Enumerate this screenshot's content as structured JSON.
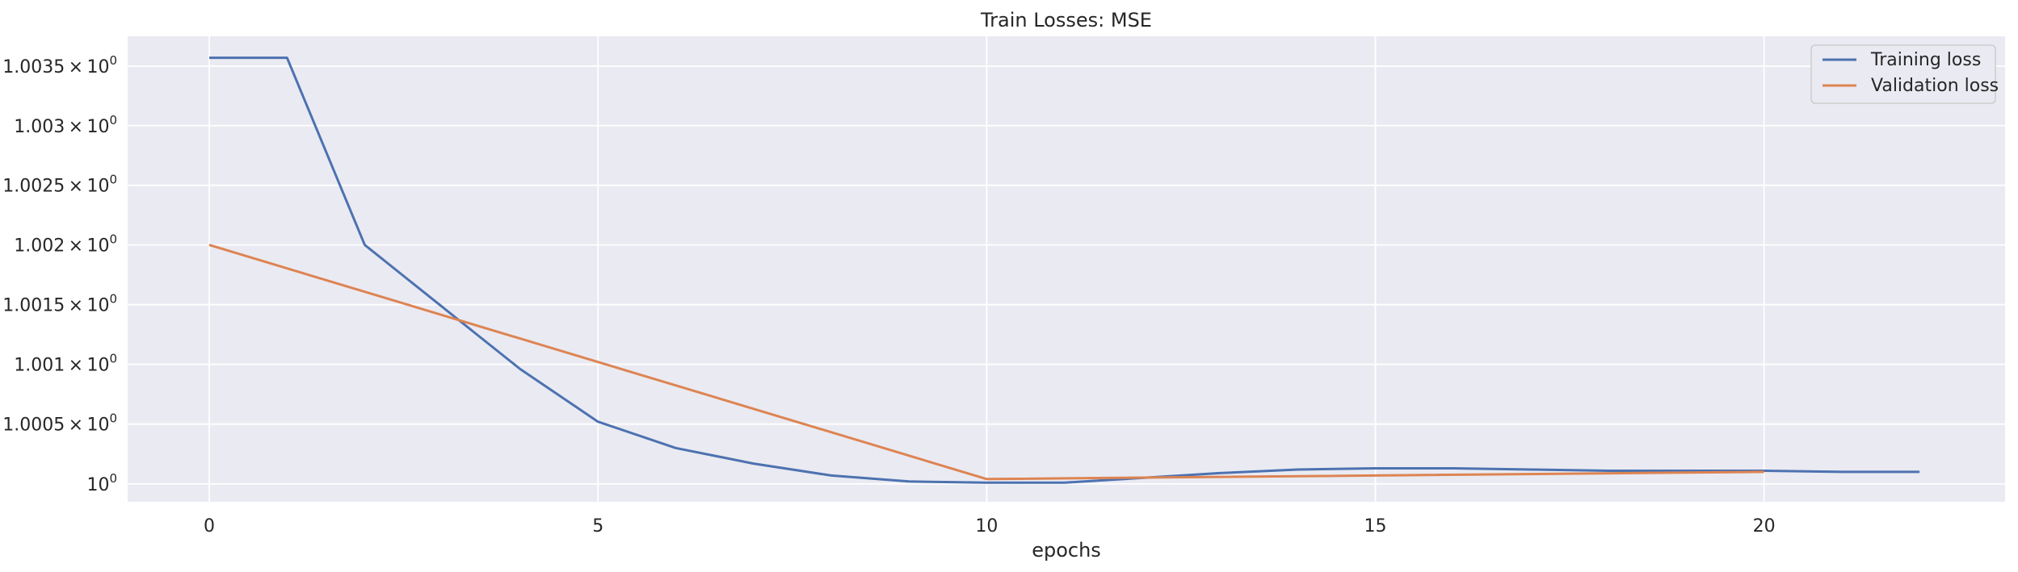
{
  "chart_data": {
    "type": "line",
    "title": "Train Losses:  MSE",
    "xlabel": "epochs",
    "ylabel": "",
    "y_scale": "log",
    "xlim": [
      -1.05,
      23.1
    ],
    "ylim": [
      0.99985,
      1.00375
    ],
    "grid": true,
    "legend_position": "top-right",
    "background_color": "#eaeaf2",
    "grid_color": "#ffffff",
    "x_ticks": [
      {
        "value": 0,
        "label": "0"
      },
      {
        "value": 5,
        "label": "5"
      },
      {
        "value": 10,
        "label": "10"
      },
      {
        "value": 15,
        "label": "15"
      },
      {
        "value": 20,
        "label": "20"
      }
    ],
    "y_ticks": [
      {
        "value": 1.0035,
        "mantissa": "1.0035",
        "base": "10",
        "exponent": "0"
      },
      {
        "value": 1.003,
        "mantissa": "1.003",
        "base": "10",
        "exponent": "0"
      },
      {
        "value": 1.0025,
        "mantissa": "1.0025",
        "base": "10",
        "exponent": "0"
      },
      {
        "value": 1.002,
        "mantissa": "1.002",
        "base": "10",
        "exponent": "0"
      },
      {
        "value": 1.0015,
        "mantissa": "1.0015",
        "base": "10",
        "exponent": "0"
      },
      {
        "value": 1.001,
        "mantissa": "1.001",
        "base": "10",
        "exponent": "0"
      },
      {
        "value": 1.0005,
        "mantissa": "1.0005",
        "base": "10",
        "exponent": "0"
      },
      {
        "value": 1.0,
        "mantissa": "",
        "base": "10",
        "exponent": "0"
      }
    ],
    "series": [
      {
        "name": "Training loss",
        "color": "#4c72b0",
        "x": [
          0,
          1,
          2,
          3,
          4,
          5,
          6,
          7,
          8,
          9,
          10,
          11,
          12,
          13,
          14,
          15,
          16,
          17,
          18,
          19,
          20,
          21,
          22
        ],
        "y": [
          1.00357,
          1.00357,
          1.002,
          1.00148,
          1.00096,
          1.00052,
          1.0003,
          1.00017,
          1.00007,
          1.00002,
          1.00001,
          1.00001,
          1.00005,
          1.00009,
          1.00012,
          1.00013,
          1.00013,
          1.00012,
          1.00011,
          1.00011,
          1.00011,
          1.0001,
          1.0001
        ]
      },
      {
        "name": "Validation loss",
        "color": "#dd8452",
        "x": [
          0,
          10,
          20
        ],
        "y": [
          1.002,
          1.00004,
          1.0001
        ]
      }
    ]
  }
}
